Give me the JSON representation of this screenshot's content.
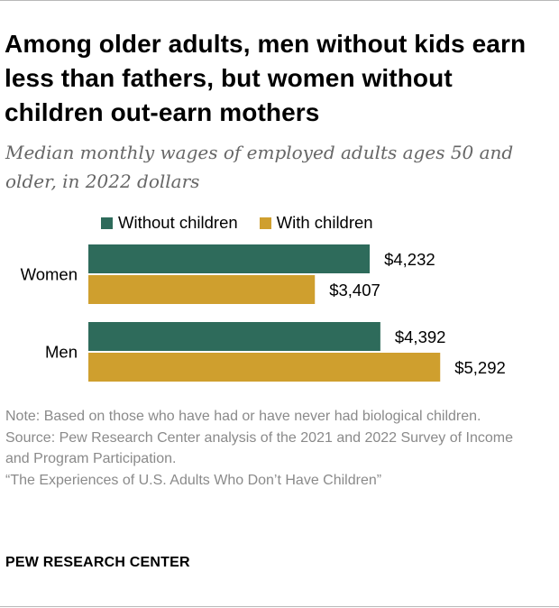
{
  "title": "Among older adults, men without kids earn less than fathers, but women without children out-earn mothers",
  "subtitle": "Median monthly wages of employed adults ages 50 and older, in 2022 dollars",
  "legend": [
    {
      "label": "Without children",
      "color": "#2e6b5b"
    },
    {
      "label": "With children",
      "color": "#cf9f2e"
    }
  ],
  "chart_data": {
    "type": "bar",
    "orientation": "horizontal",
    "categories": [
      "Women",
      "Men"
    ],
    "series": [
      {
        "name": "Without children",
        "color": "#2e6b5b",
        "values": [
          4232,
          4392
        ],
        "labels": [
          "$4,232",
          "$4,392"
        ]
      },
      {
        "name": "With children",
        "color": "#cf9f2e",
        "values": [
          3407,
          5292
        ],
        "labels": [
          "$3,407",
          "$5,292"
        ]
      }
    ],
    "title": "Among older adults, men without kids earn less than fathers, but women without children out-earn mothers",
    "xlabel": "",
    "ylabel": "",
    "xlim": [
      0,
      6000
    ],
    "grid": false,
    "legend_position": "top"
  },
  "note": {
    "note_text": "Note: Based on those who have had or have never had biological children.",
    "source_text": "Source: Pew Research Center analysis of the 2021 and 2022 Survey of Income and Program Participation.",
    "report_text": "“The Experiences of U.S. Adults Who Don’t Have Children”"
  },
  "brand": "PEW RESEARCH CENTER"
}
